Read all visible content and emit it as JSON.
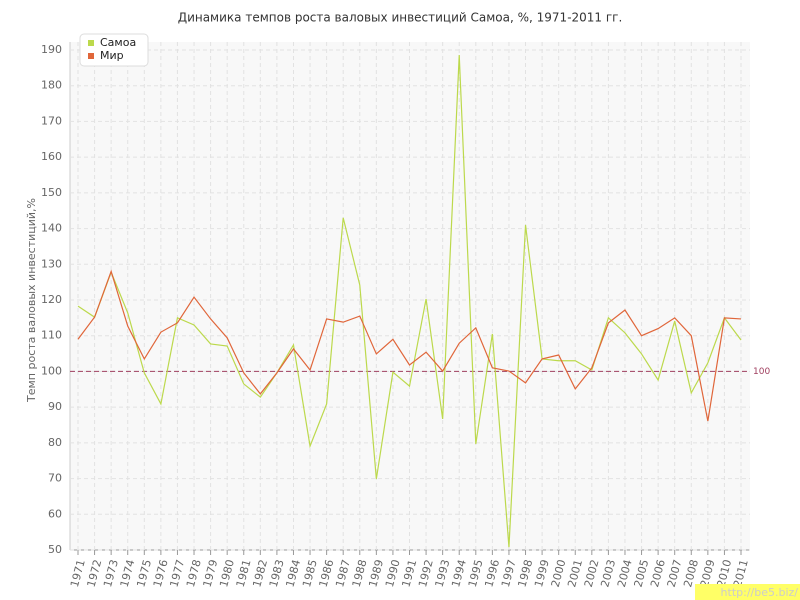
{
  "chart_data": {
    "type": "line",
    "title": "Динамика темпов роста валовых инвестиций Самоа, %, 1971-2011 гг.",
    "y_label": "Темп роста валовых инвестиций,%",
    "categories": [
      "1971",
      "1972",
      "1973",
      "1974",
      "1975",
      "1976",
      "1977",
      "1978",
      "1979",
      "1980",
      "1981",
      "1982",
      "1983",
      "1984",
      "1985",
      "1986",
      "1987",
      "1988",
      "1989",
      "1990",
      "1991",
      "1992",
      "1993",
      "1994",
      "1995",
      "1996",
      "1997",
      "1998",
      "1999",
      "2000",
      "2001",
      "2002",
      "2003",
      "2004",
      "2005",
      "2006",
      "2007",
      "2008",
      "2009",
      "2010",
      "2011"
    ],
    "series": [
      {
        "name": "Самоа",
        "color": "#bcd94c",
        "values": [
          118.3,
          115.2,
          127.8,
          116.4,
          99.6,
          90.9,
          115,
          113,
          107.7,
          107.1,
          96.5,
          92.8,
          99.6,
          107.4,
          79.1,
          90.9,
          143,
          124.2,
          69.9,
          99.8,
          95.9,
          120.3,
          86.7,
          188.6,
          79.7,
          110.5,
          50.8,
          141,
          103.5,
          103,
          103,
          100.4,
          115,
          110.8,
          104.9,
          97.6,
          114.1,
          94,
          102.4,
          115,
          108.8
        ]
      },
      {
        "name": "Мир",
        "color": "#e0663a",
        "values": [
          109,
          115.2,
          128,
          112.7,
          103.5,
          111,
          113.6,
          120.8,
          114.7,
          109.4,
          99.6,
          93.7,
          99.6,
          106.3,
          100.4,
          114.7,
          113.8,
          115.5,
          104.9,
          109,
          101.8,
          105.4,
          100.1,
          107.9,
          112.2,
          101,
          100.1,
          96.8,
          103.5,
          104.6,
          95.1,
          101,
          113.6,
          117.2,
          110,
          112,
          115,
          110,
          86.1,
          115,
          114.7
        ]
      }
    ],
    "ylim": [
      50,
      190
    ],
    "yticks": [
      50,
      60,
      70,
      80,
      90,
      100,
      110,
      120,
      130,
      140,
      150,
      160,
      170,
      180,
      190
    ],
    "grid": true,
    "legend": "top-left",
    "reference_line": 100,
    "reference_color": "#a04060",
    "watermark": "http://be5.biz/"
  }
}
